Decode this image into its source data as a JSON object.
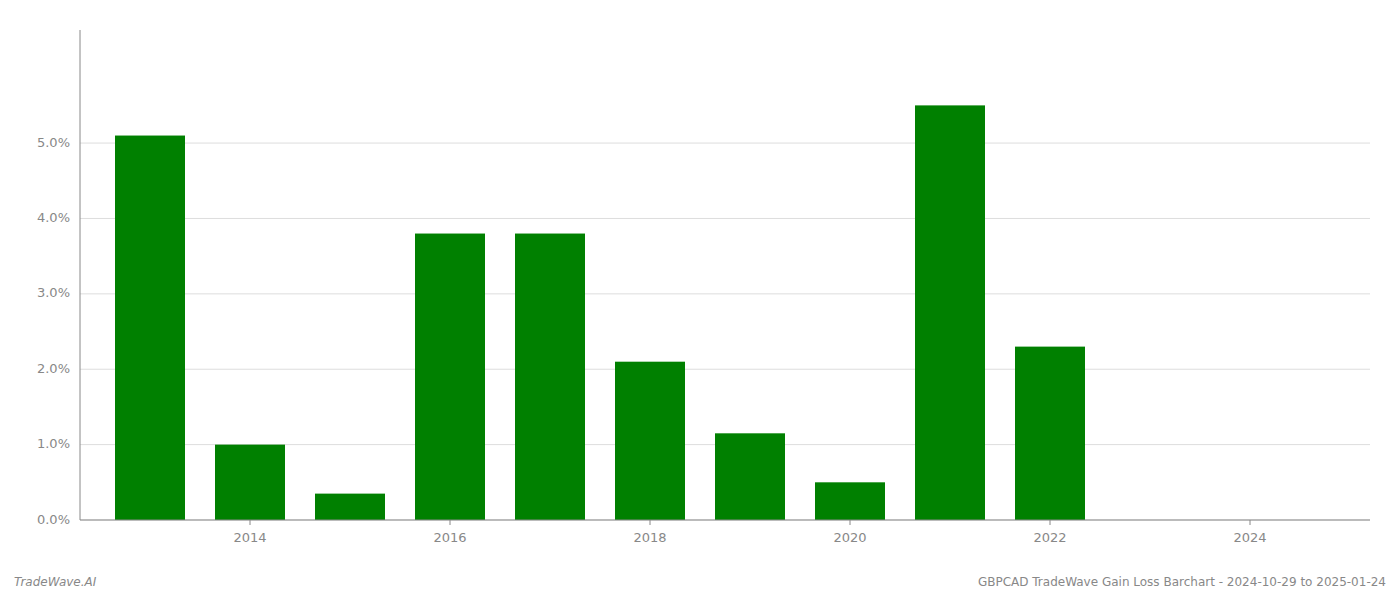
{
  "chart_data": {
    "type": "bar",
    "title": "GBPCAD TradeWave Gain Loss Barchart - 2024-10-29 to 2025-01-24",
    "annotations": [
      {
        "text": "TradeWave.AI"
      }
    ],
    "x": [
      2013,
      2014,
      2015,
      2016,
      2017,
      2018,
      2019,
      2020,
      2021,
      2022,
      2023
    ],
    "values": [
      0.051,
      0.01,
      0.0035,
      0.038,
      0.038,
      0.021,
      0.0115,
      0.005,
      0.055,
      0.023,
      0.0
    ],
    "color": "#008000",
    "xlim": [
      2012.3,
      2025.2
    ],
    "xticks": [
      2014,
      2016,
      2018,
      2020,
      2022,
      2024
    ],
    "ylim": [
      0.0,
      0.065
    ],
    "yticks": [
      {
        "value": 0.0,
        "label": "0.0%"
      },
      {
        "value": 0.01,
        "label": "1.0%"
      },
      {
        "value": 0.02,
        "label": "2.0%"
      },
      {
        "value": 0.03,
        "label": "3.0%"
      },
      {
        "value": 0.04,
        "label": "4.0%"
      },
      {
        "value": 0.05,
        "label": "5.0%"
      }
    ],
    "grid": true
  }
}
